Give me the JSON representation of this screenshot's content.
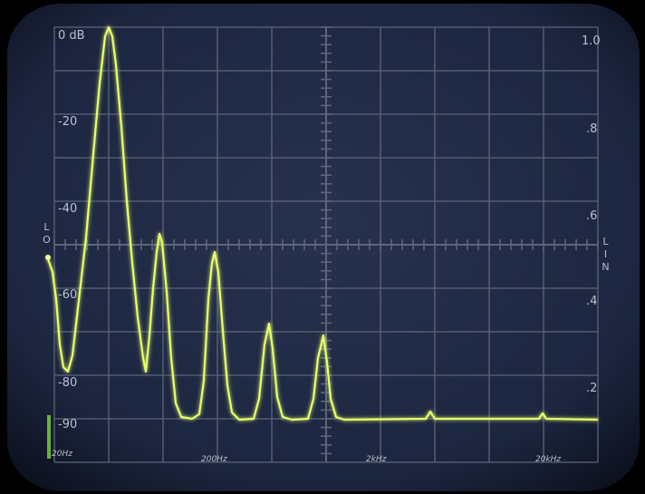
{
  "screen": {
    "left_scale": [
      "0 dB",
      "-20",
      "-40",
      "-60",
      "-80",
      "-90"
    ],
    "right_scale": [
      "1.0",
      ".8",
      ".6",
      ".4",
      ".2"
    ],
    "left_mode": "LO",
    "right_mode": "LIN",
    "frequency_labels": [
      "20Hz",
      "200Hz",
      "2kHz",
      "20kHz"
    ]
  }
}
